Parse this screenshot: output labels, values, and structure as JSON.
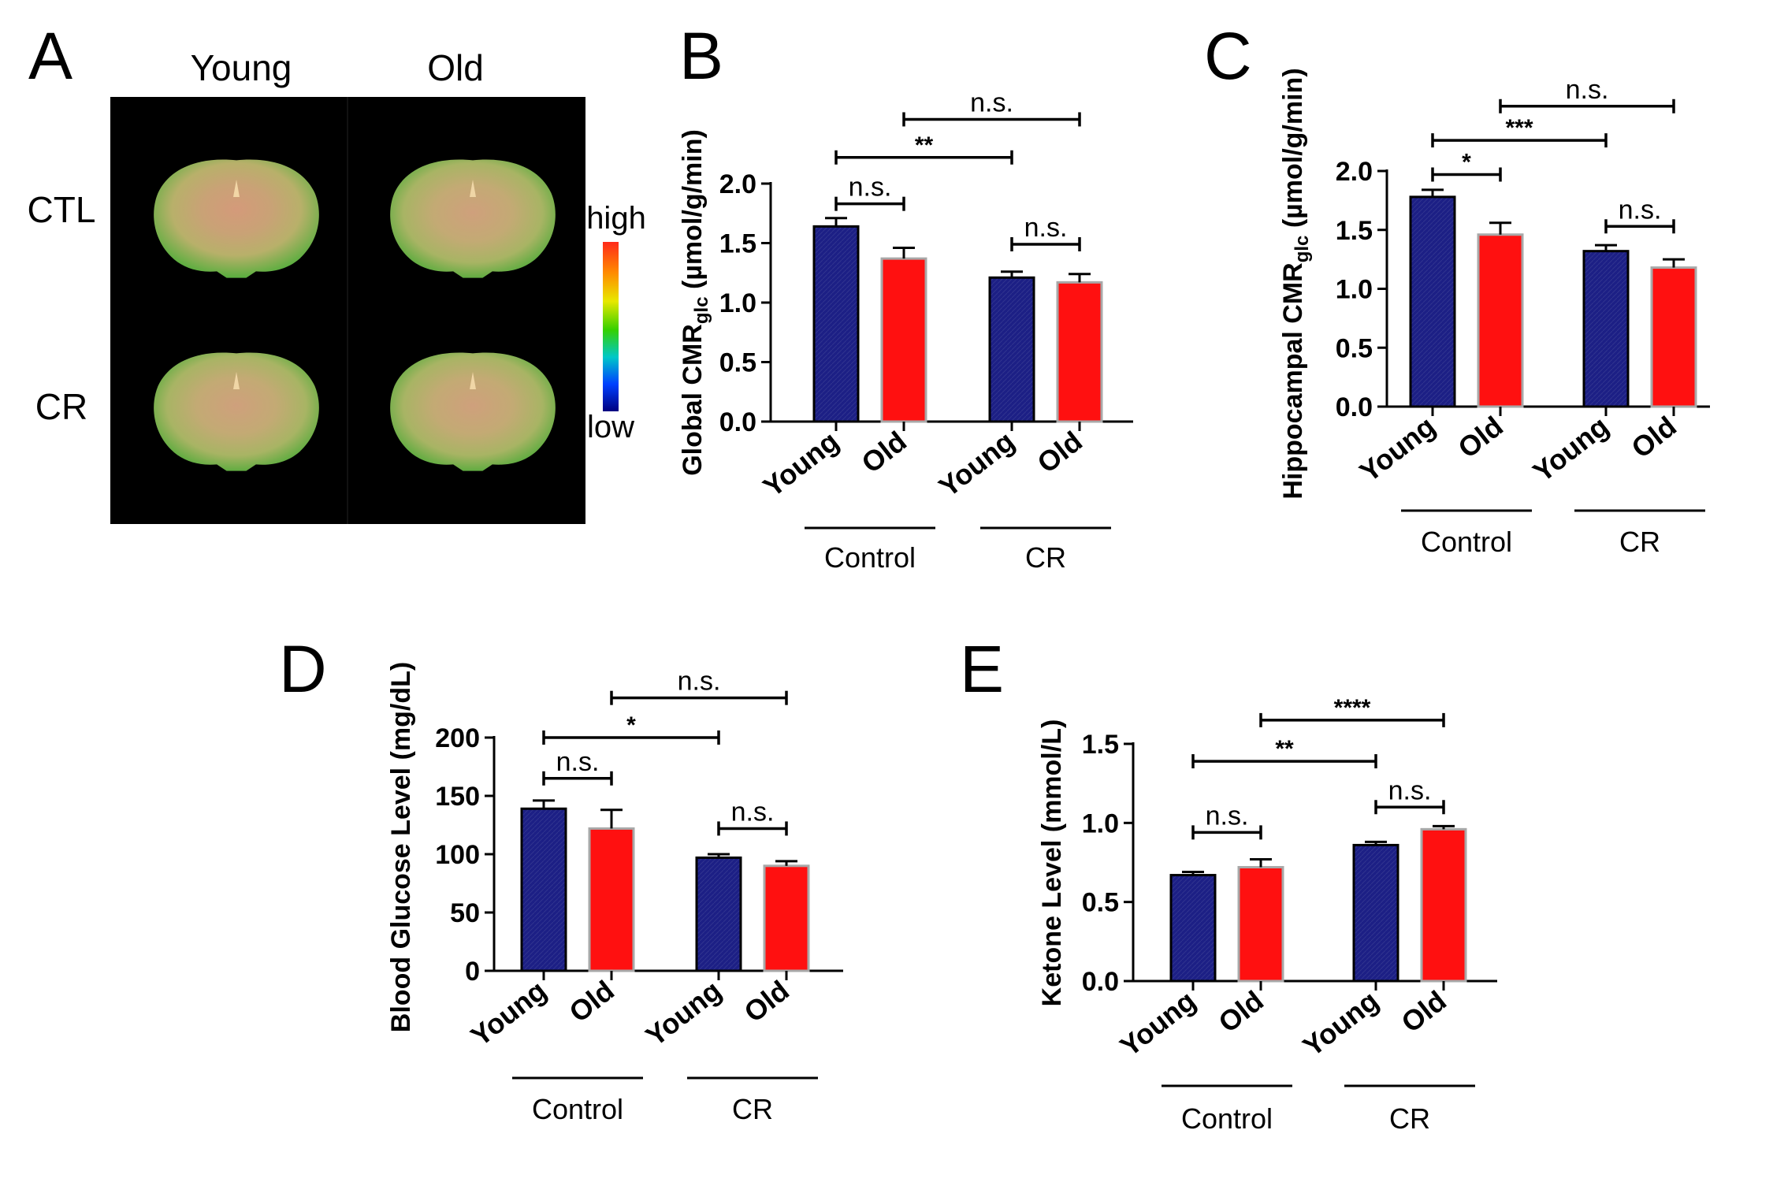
{
  "panel_a": {
    "letter": "A",
    "col_labels": [
      "Young",
      "Old"
    ],
    "row_labels": [
      "CTL",
      "CR"
    ],
    "colorbar": {
      "high": "high",
      "low": "low",
      "colors": [
        "#ff2a1a",
        "#ff8a00",
        "#e8e800",
        "#35d000",
        "#00c8c8",
        "#0040ff",
        "#000080"
      ]
    }
  },
  "colors": {
    "young": "#1c1f85",
    "old": "#ff1010",
    "old_border": "#a8a8a8",
    "axis": "#000000"
  },
  "chart_data": [
    {
      "panel": "B",
      "type": "bar",
      "ylabel": "Global CMR",
      "ylabel_sub": "glc",
      "ylabel_unit": " (µmol/g/min)",
      "ylim": [
        0,
        2.0
      ],
      "yticks": [
        0.0,
        0.5,
        1.0,
        1.5,
        2.0
      ],
      "ytick_labels": [
        "0.0",
        "0.5",
        "1.0",
        "1.5",
        "2.0"
      ],
      "categories": [
        "Young",
        "Old",
        "Young",
        "Old"
      ],
      "values": [
        1.64,
        1.37,
        1.21,
        1.17
      ],
      "errors": [
        0.07,
        0.09,
        0.05,
        0.07
      ],
      "groups": [
        {
          "label": "Control",
          "bars": [
            0,
            1
          ]
        },
        {
          "label": "CR",
          "bars": [
            2,
            3
          ]
        }
      ],
      "significance": [
        {
          "from": 0,
          "to": 1,
          "label": "n.s.",
          "level": 1.83
        },
        {
          "from": 2,
          "to": 3,
          "label": "n.s.",
          "level": 1.49
        },
        {
          "from": 0,
          "to": 2,
          "label": "**",
          "level": 2.22
        },
        {
          "from": 1,
          "to": 3,
          "label": "n.s.",
          "level": 2.54
        }
      ]
    },
    {
      "panel": "C",
      "type": "bar",
      "ylabel": "Hippocampal CMR",
      "ylabel_sub": "glc",
      "ylabel_unit": " (µmol/g/min)",
      "ylim": [
        0,
        2.0
      ],
      "yticks": [
        0.0,
        0.5,
        1.0,
        1.5,
        2.0
      ],
      "ytick_labels": [
        "0.0",
        "0.5",
        "1.0",
        "1.5",
        "2.0"
      ],
      "categories": [
        "Young",
        "Old",
        "Young",
        "Old"
      ],
      "values": [
        1.78,
        1.46,
        1.32,
        1.18
      ],
      "errors": [
        0.06,
        0.1,
        0.05,
        0.07
      ],
      "groups": [
        {
          "label": "Control",
          "bars": [
            0,
            1
          ]
        },
        {
          "label": "CR",
          "bars": [
            2,
            3
          ]
        }
      ],
      "significance": [
        {
          "from": 0,
          "to": 1,
          "label": "*",
          "level": 1.97
        },
        {
          "from": 2,
          "to": 3,
          "label": "n.s.",
          "level": 1.53
        },
        {
          "from": 0,
          "to": 2,
          "label": "***",
          "level": 2.26
        },
        {
          "from": 1,
          "to": 3,
          "label": "n.s.",
          "level": 2.55
        }
      ]
    },
    {
      "panel": "D",
      "type": "bar",
      "ylabel": "Blood Glucose Level (mg/dL)",
      "ylabel_sub": "",
      "ylabel_unit": "",
      "ylim": [
        0,
        200
      ],
      "yticks": [
        0,
        50,
        100,
        150,
        200
      ],
      "ytick_labels": [
        "0",
        "50",
        "100",
        "150",
        "200"
      ],
      "categories": [
        "Young",
        "Old",
        "Young",
        "Old"
      ],
      "values": [
        139,
        122,
        97,
        90
      ],
      "errors": [
        7,
        16,
        3,
        4
      ],
      "groups": [
        {
          "label": "Control",
          "bars": [
            0,
            1
          ]
        },
        {
          "label": "CR",
          "bars": [
            2,
            3
          ]
        }
      ],
      "significance": [
        {
          "from": 0,
          "to": 1,
          "label": "n.s.",
          "level": 165
        },
        {
          "from": 2,
          "to": 3,
          "label": "n.s.",
          "level": 122
        },
        {
          "from": 0,
          "to": 2,
          "label": "*",
          "level": 200
        },
        {
          "from": 1,
          "to": 3,
          "label": "n.s.",
          "level": 234
        }
      ]
    },
    {
      "panel": "E",
      "type": "bar",
      "ylabel": "Ketone Level (mmol/L)",
      "ylabel_sub": "",
      "ylabel_unit": "",
      "ylim": [
        0,
        1.5
      ],
      "yticks": [
        0.0,
        0.5,
        1.0,
        1.5
      ],
      "ytick_labels": [
        "0.0",
        "0.5",
        "1.0",
        "1.5"
      ],
      "categories": [
        "Young",
        "Old",
        "Young",
        "Old"
      ],
      "values": [
        0.67,
        0.72,
        0.86,
        0.96
      ],
      "errors": [
        0.02,
        0.05,
        0.02,
        0.02
      ],
      "groups": [
        {
          "label": "Control",
          "bars": [
            0,
            1
          ]
        },
        {
          "label": "CR",
          "bars": [
            2,
            3
          ]
        }
      ],
      "significance": [
        {
          "from": 0,
          "to": 1,
          "label": "n.s.",
          "level": 0.94
        },
        {
          "from": 2,
          "to": 3,
          "label": "n.s.",
          "level": 1.1
        },
        {
          "from": 0,
          "to": 2,
          "label": "**",
          "level": 1.39
        },
        {
          "from": 1,
          "to": 3,
          "label": "****",
          "level": 1.65
        }
      ]
    }
  ]
}
